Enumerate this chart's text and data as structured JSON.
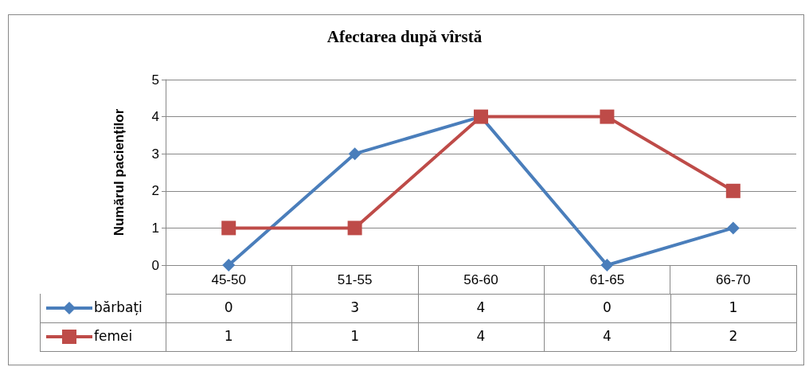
{
  "chart_data": {
    "type": "line",
    "title": "Afectarea după vîrstă",
    "ylabel": "Numărul pacienților",
    "categories": [
      "45-50",
      "51-55",
      "56-60",
      "61-65",
      "66-70"
    ],
    "series": [
      {
        "name": "bărbați",
        "color": "#4a7ebb",
        "marker": "diamond",
        "values": [
          0,
          3,
          4,
          0,
          1
        ]
      },
      {
        "name": "femei",
        "color": "#be4b48",
        "marker": "square",
        "values": [
          1,
          1,
          4,
          4,
          2
        ]
      }
    ],
    "ylim": [
      0,
      5
    ],
    "yticks": [
      0,
      1,
      2,
      3,
      4,
      5
    ],
    "grid": "y",
    "legend": "bottom",
    "data_labels": true,
    "line_style": "solid"
  }
}
